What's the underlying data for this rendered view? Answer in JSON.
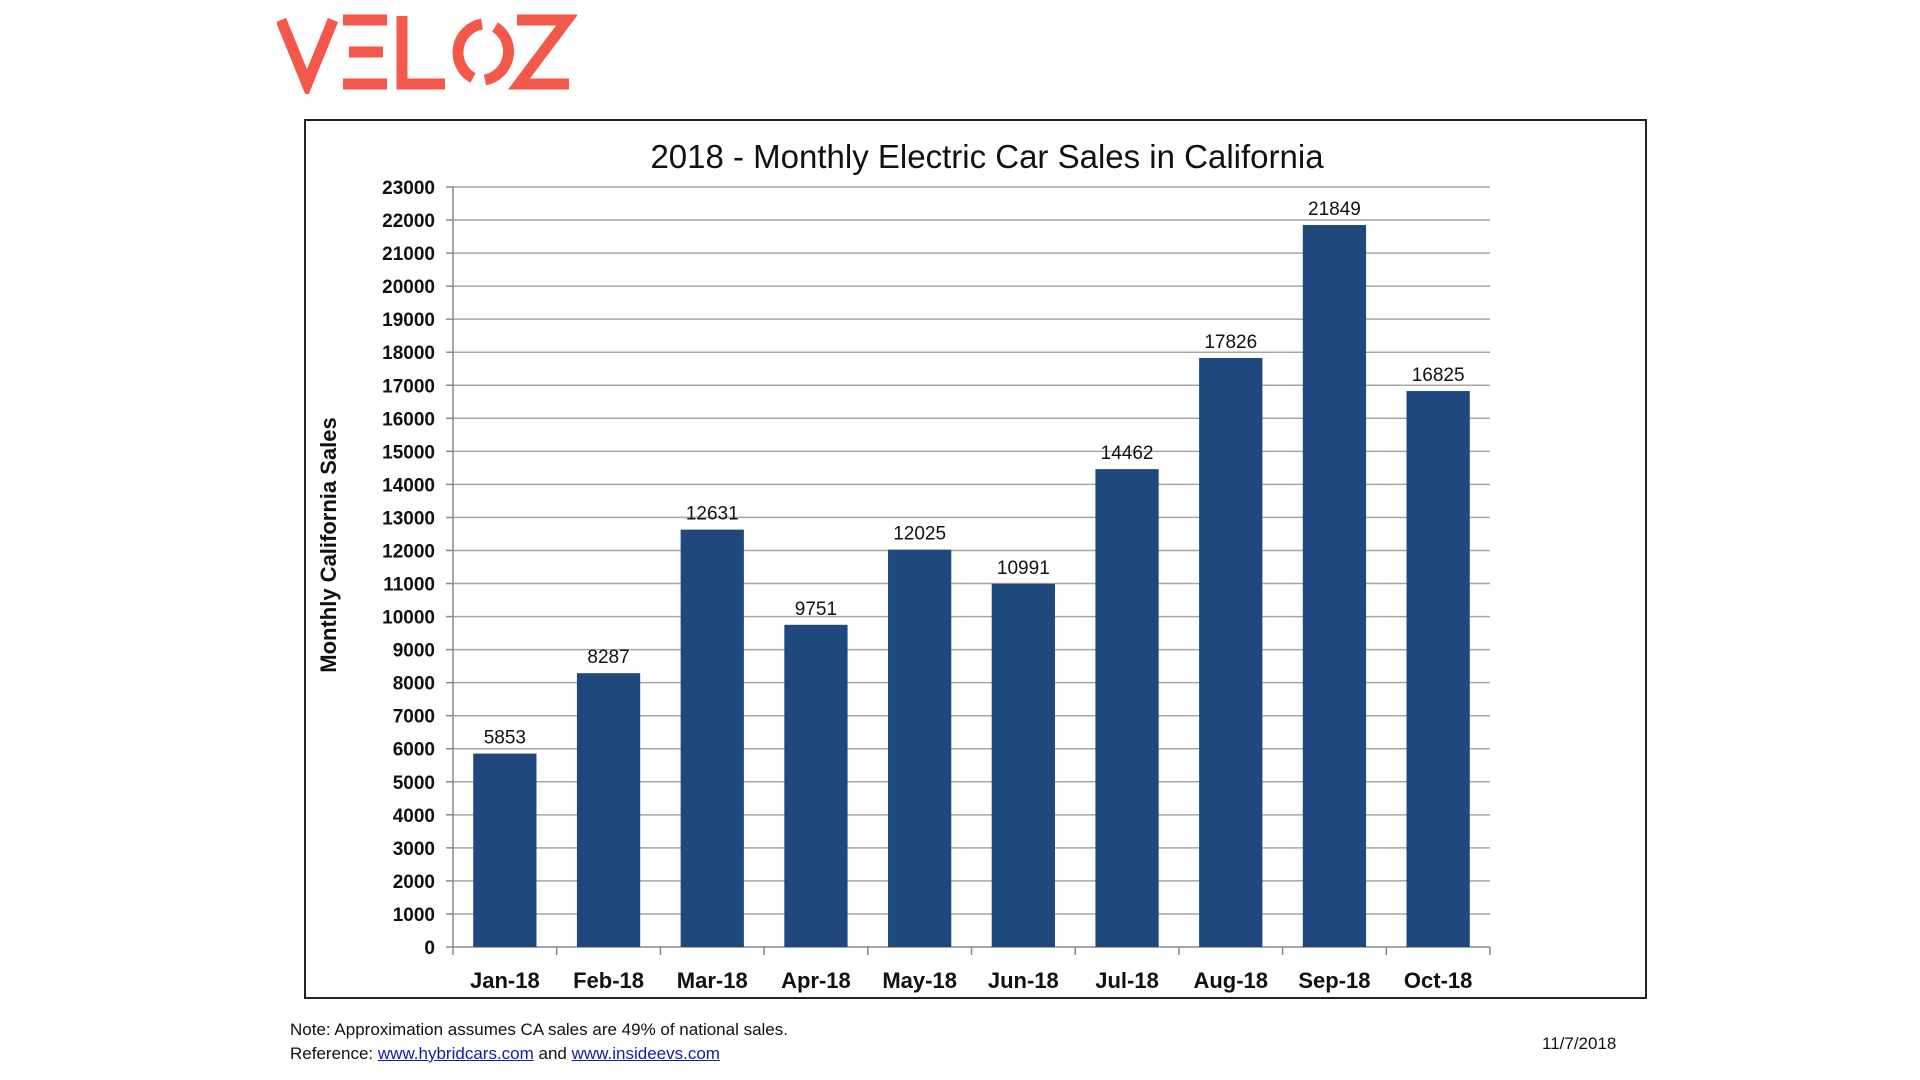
{
  "logo": {
    "text": "VELOZ",
    "color": "#f2594b"
  },
  "chart_data": {
    "type": "bar",
    "title": "2018 - Monthly Electric Car Sales in California",
    "xlabel": "",
    "ylabel": "Monthly California Sales",
    "categories": [
      "Jan-18",
      "Feb-18",
      "Mar-18",
      "Apr-18",
      "May-18",
      "Jun-18",
      "Jul-18",
      "Aug-18",
      "Sep-18",
      "Oct-18"
    ],
    "values": [
      5853,
      8287,
      12631,
      9751,
      12025,
      10991,
      14462,
      17826,
      21849,
      16825
    ],
    "ylim": [
      0,
      23000
    ],
    "ytick_step": 1000,
    "grid": true,
    "data_labels": true,
    "bar_color": "#1f497d",
    "legend": "none"
  },
  "footer": {
    "note": "Note:  Approximation assumes CA sales are 49% of national sales.",
    "reference_label": "Reference:",
    "link1": "www.hybridcars.com",
    "and": "and",
    "link2": "www.insideevs.com",
    "date": "11/7/2018"
  }
}
